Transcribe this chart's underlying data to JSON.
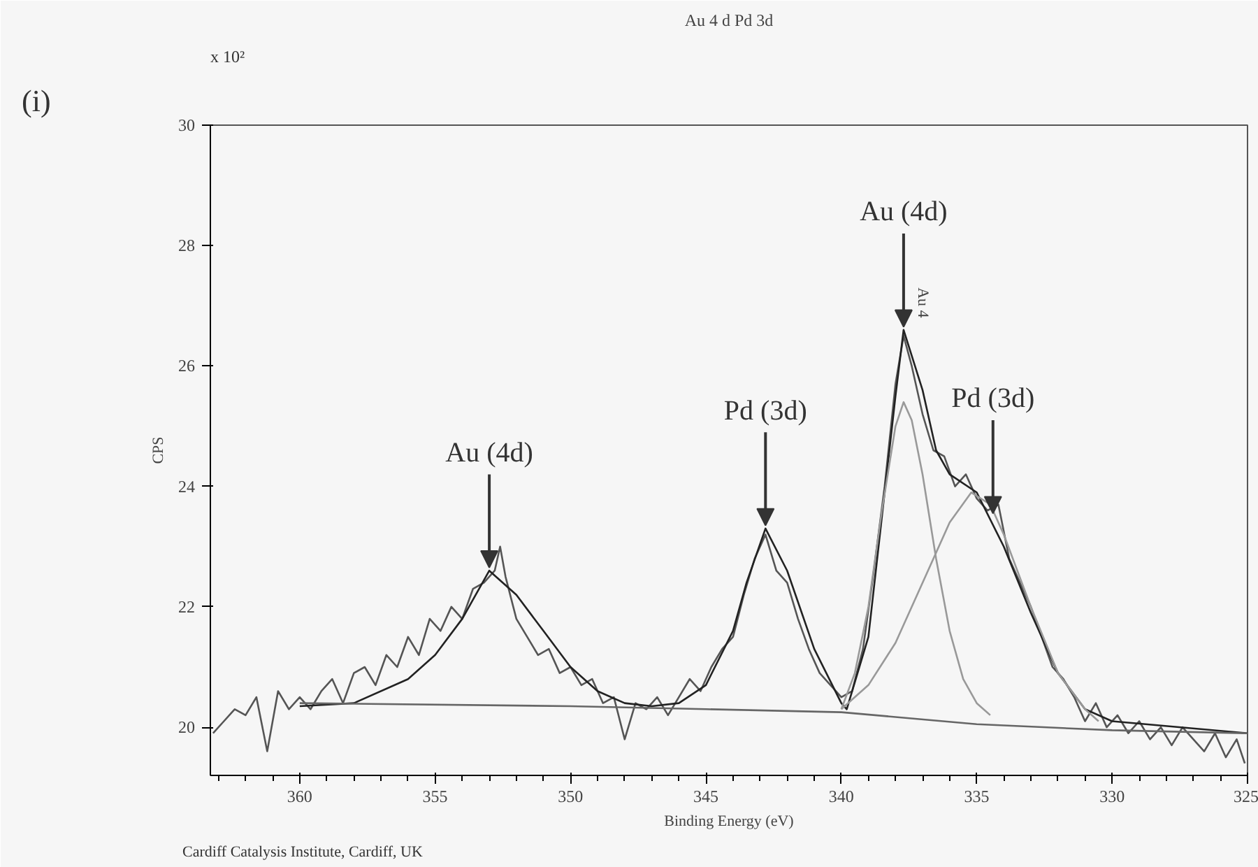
{
  "chart_data": {
    "type": "line",
    "title": "Au 4 d Pd 3d",
    "xlabel": "Binding Energy (eV)",
    "ylabel": "CPS",
    "xlim": [
      363.3,
      325
    ],
    "xticks": [
      360,
      355,
      350,
      345,
      340,
      335,
      330,
      325
    ],
    "ylim": [
      19.2,
      30
    ],
    "yticks": [
      20,
      22,
      24,
      26,
      28,
      30
    ],
    "grid": false,
    "series": [
      {
        "color": "#555555",
        "x": [
          363.2,
          362.8,
          362.4,
          362,
          361.6,
          361.2,
          360.8,
          360.4,
          360,
          359.6,
          359.2,
          358.8,
          358.4,
          358,
          357.6,
          357.2,
          356.8,
          356.4,
          356,
          355.6,
          355.2,
          354.8,
          354.4,
          354,
          353.6,
          353.2,
          352.8,
          352.6,
          352.4,
          352,
          351.6,
          351.2,
          350.8,
          350.4,
          350,
          349.6,
          349.2,
          348.8,
          348.4,
          348,
          347.6,
          347.2,
          346.8,
          346.4,
          346,
          345.6,
          345.2,
          344.8,
          344.4,
          344,
          343.6,
          343.2,
          342.8,
          342.4,
          342,
          341.6,
          341.2,
          340.8,
          340.4,
          340,
          339.6,
          339.2,
          338.8,
          338.4,
          338,
          337.7,
          337.4,
          337,
          336.6,
          336.2,
          335.8,
          335.4,
          335,
          334.6,
          334.2,
          333.8,
          333.4,
          333,
          332.6,
          332.2,
          331.8,
          331.4,
          331,
          330.6,
          330.2,
          329.8,
          329.4,
          329,
          328.6,
          328.2,
          327.8,
          327.4,
          327,
          326.6,
          326.2,
          325.8,
          325.4,
          325.1
        ],
        "values": [
          19.9,
          20.1,
          20.3,
          20.2,
          20.5,
          19.6,
          20.6,
          20.3,
          20.5,
          20.3,
          20.6,
          20.8,
          20.4,
          20.9,
          21.0,
          20.7,
          21.2,
          21.0,
          21.5,
          21.2,
          21.8,
          21.6,
          22.0,
          21.8,
          22.3,
          22.4,
          22.6,
          23.0,
          22.5,
          21.8,
          21.5,
          21.2,
          21.3,
          20.9,
          21.0,
          20.7,
          20.8,
          20.4,
          20.5,
          19.8,
          20.4,
          20.3,
          20.5,
          20.2,
          20.5,
          20.8,
          20.6,
          21.0,
          21.3,
          21.5,
          22.2,
          22.8,
          23.2,
          22.6,
          22.4,
          21.8,
          21.3,
          20.9,
          20.7,
          20.5,
          20.6,
          21.3,
          22.6,
          24.0,
          25.7,
          26.5,
          26.0,
          25.2,
          24.6,
          24.5,
          24.0,
          24.2,
          23.8,
          23.6,
          23.7,
          22.8,
          22.4,
          22.0,
          21.5,
          21.0,
          20.8,
          20.5,
          20.1,
          20.4,
          20.0,
          20.2,
          19.9,
          20.1,
          19.8,
          20.0,
          19.7,
          20.0,
          19.8,
          19.6,
          19.9,
          19.5,
          19.8,
          19.4
        ]
      },
      {
        "color": "#222222",
        "x": [
          360,
          358,
          356,
          355,
          354,
          353,
          352,
          351,
          350,
          349,
          348,
          347,
          346,
          345,
          344,
          343.5,
          342.8,
          342,
          341,
          340,
          339.8,
          339,
          338.5,
          338,
          337.7,
          337,
          336.5,
          336,
          335,
          334,
          333,
          332,
          331,
          330,
          325
        ],
        "values": [
          20.35,
          20.4,
          20.8,
          21.2,
          21.8,
          22.6,
          22.2,
          21.6,
          21.0,
          20.6,
          20.4,
          20.35,
          20.4,
          20.7,
          21.6,
          22.4,
          23.3,
          22.6,
          21.3,
          20.4,
          20.3,
          21.5,
          23.5,
          25.5,
          26.6,
          25.6,
          24.6,
          24.2,
          23.9,
          23.0,
          21.9,
          20.9,
          20.3,
          20.1,
          19.9
        ]
      },
      {
        "color": "#999999",
        "x": [
          340,
          339.5,
          339,
          338.5,
          338,
          337.7,
          337.4,
          337,
          336.5,
          336,
          335.5,
          335,
          334.5
        ],
        "values": [
          20.3,
          20.9,
          22.0,
          23.6,
          25.0,
          25.4,
          25.1,
          24.2,
          22.8,
          21.6,
          20.8,
          20.4,
          20.2
        ]
      },
      {
        "color": "#999999",
        "x": [
          340,
          339,
          338,
          337,
          336,
          335.2,
          334.5,
          334,
          333,
          332,
          331,
          330.5
        ],
        "values": [
          20.3,
          20.7,
          21.4,
          22.4,
          23.4,
          23.9,
          23.7,
          23.2,
          22.0,
          20.9,
          20.3,
          20.1
        ]
      },
      {
        "color": "#666666",
        "x": [
          360,
          350,
          345,
          340,
          335,
          330,
          325
        ],
        "values": [
          20.4,
          20.35,
          20.3,
          20.25,
          20.05,
          19.95,
          19.9
        ]
      }
    ],
    "annotations": [
      "(i)",
      "x 10²",
      "Cardiff Catalysis Institute, Cardiff, UK",
      "Au 4",
      {
        "text": "Au (4d)",
        "x": 353,
        "y": 22.6
      },
      {
        "text": "Pd (3d)",
        "x": 342.8,
        "y": 23.3
      },
      {
        "text": "Au (4d)",
        "x": 337.7,
        "y": 26.6
      },
      {
        "text": "Pd (3d)",
        "x": 334.4,
        "y": 23.5
      }
    ]
  }
}
